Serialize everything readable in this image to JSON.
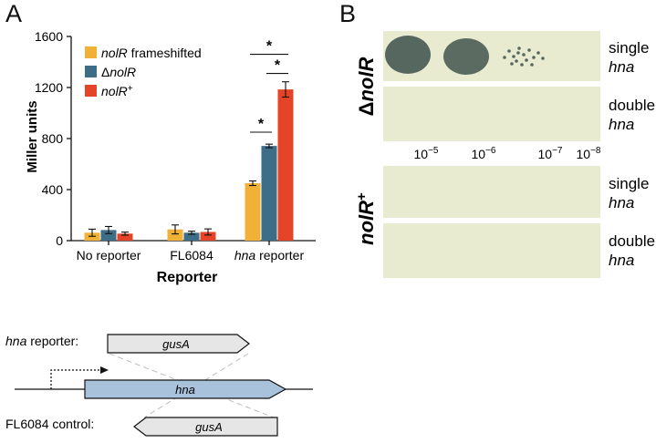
{
  "panel_a_letter": "A",
  "panel_b_letter": "B",
  "chart_data": {
    "type": "bar",
    "categories": [
      "No reporter",
      "FL6084",
      "hna reporter"
    ],
    "xlabel": "Reporter",
    "ylabel": "Miller units",
    "ylim": [
      0,
      1600
    ],
    "yticks": [
      0,
      400,
      800,
      1200,
      1600
    ],
    "grid": false,
    "legend_position": "top-left",
    "series": [
      {
        "name": "nolR frameshifted",
        "color": "#f0b136",
        "values": [
          62,
          88,
          450
        ],
        "errors": [
          28,
          35,
          18
        ]
      },
      {
        "name": "ΔnolR",
        "color": "#3e6d87",
        "values": [
          83,
          62,
          742
        ],
        "errors": [
          28,
          12,
          14
        ]
      },
      {
        "name": "nolR+",
        "color": "#e54428",
        "values": [
          55,
          68,
          1185
        ],
        "errors": [
          12,
          24,
          60
        ]
      }
    ],
    "significance": [
      "*",
      "*",
      "*"
    ]
  },
  "panel_b": {
    "row_label_top": "ΔnolR",
    "row_label_bottom": "nolR+",
    "side_label_word1": "single",
    "side_label_word2": "double",
    "side_label_gene": "hna",
    "dilutions": [
      "10−5",
      "10−6",
      "10−7",
      "10−8"
    ],
    "plate_color": "#e9ebd0",
    "colony_color": "#56675f"
  },
  "diagram": {
    "reporter_label": "hna reporter:",
    "control_label": "FL6084 control:",
    "gusA_label": "gusA",
    "hna_gene_label": "hna",
    "hna_color": "#a9c2dc",
    "gusA_color": "#e6e6e6"
  }
}
